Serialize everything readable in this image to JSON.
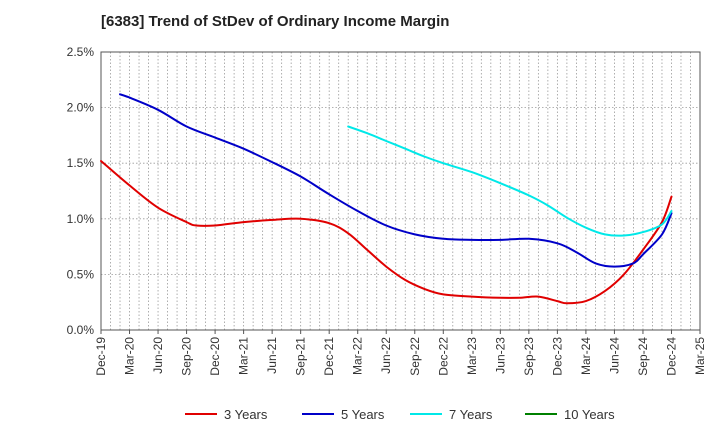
{
  "chart_data": {
    "type": "line",
    "title": "[6383]  Trend of StDev of Ordinary Income Margin",
    "xlabel": "",
    "ylabel": "",
    "x_ticks": [
      "Dec-19",
      "Mar-20",
      "Jun-20",
      "Sep-20",
      "Dec-20",
      "Mar-21",
      "Jun-21",
      "Sep-21",
      "Dec-21",
      "Mar-22",
      "Jun-22",
      "Sep-22",
      "Dec-22",
      "Mar-23",
      "Jun-23",
      "Sep-23",
      "Dec-23",
      "Mar-24",
      "Jun-24",
      "Sep-24",
      "Dec-24",
      "Mar-25"
    ],
    "y_ticks": [
      "0.0%",
      "0.5%",
      "1.0%",
      "1.5%",
      "2.0%",
      "2.5%"
    ],
    "ylim": [
      0,
      2.5
    ],
    "y_unit": "%",
    "grid": true,
    "legend_position": "bottom",
    "series": [
      {
        "name": "3 Years",
        "color": "#e00000",
        "points": [
          [
            "Dec-19",
            1.52
          ],
          [
            "Mar-20",
            1.3
          ],
          [
            "Jun-20",
            1.1
          ],
          [
            "Sep-20",
            0.97
          ],
          [
            "Oct-20",
            0.94
          ],
          [
            "Dec-20",
            0.94
          ],
          [
            "Mar-21",
            0.97
          ],
          [
            "Jun-21",
            0.99
          ],
          [
            "Sep-21",
            1.0
          ],
          [
            "Dec-21",
            0.96
          ],
          [
            "Feb-22",
            0.87
          ],
          [
            "Apr-22",
            0.72
          ],
          [
            "Jun-22",
            0.57
          ],
          [
            "Aug-22",
            0.45
          ],
          [
            "Oct-22",
            0.37
          ],
          [
            "Dec-22",
            0.32
          ],
          [
            "Mar-23",
            0.3
          ],
          [
            "Jun-23",
            0.29
          ],
          [
            "Aug-23",
            0.29
          ],
          [
            "Oct-23",
            0.3
          ],
          [
            "Dec-23",
            0.26
          ],
          [
            "Jan-24",
            0.24
          ],
          [
            "Mar-24",
            0.26
          ],
          [
            "May-24",
            0.35
          ],
          [
            "Jul-24",
            0.5
          ],
          [
            "Sep-24",
            0.72
          ],
          [
            "Nov-24",
            0.97
          ],
          [
            "Dec-24",
            1.2
          ]
        ]
      },
      {
        "name": "5 Years",
        "color": "#0000c8",
        "points": [
          [
            "Feb-20",
            2.12
          ],
          [
            "Mar-20",
            2.09
          ],
          [
            "Jun-20",
            1.98
          ],
          [
            "Sep-20",
            1.83
          ],
          [
            "Dec-20",
            1.73
          ],
          [
            "Mar-21",
            1.63
          ],
          [
            "Jun-21",
            1.51
          ],
          [
            "Sep-21",
            1.38
          ],
          [
            "Dec-21",
            1.22
          ],
          [
            "Mar-22",
            1.07
          ],
          [
            "Jun-22",
            0.94
          ],
          [
            "Sep-22",
            0.86
          ],
          [
            "Dec-22",
            0.82
          ],
          [
            "Mar-23",
            0.81
          ],
          [
            "Jun-23",
            0.81
          ],
          [
            "Sep-23",
            0.82
          ],
          [
            "Dec-23",
            0.78
          ],
          [
            "Feb-24",
            0.7
          ],
          [
            "Apr-24",
            0.6
          ],
          [
            "Jun-24",
            0.57
          ],
          [
            "Aug-24",
            0.6
          ],
          [
            "Sep-24",
            0.68
          ],
          [
            "Nov-24",
            0.86
          ],
          [
            "Dec-24",
            1.05
          ]
        ]
      },
      {
        "name": "7 Years",
        "color": "#00e8e8",
        "points": [
          [
            "Feb-22",
            1.83
          ],
          [
            "Apr-22",
            1.77
          ],
          [
            "Jun-22",
            1.7
          ],
          [
            "Aug-22",
            1.63
          ],
          [
            "Oct-22",
            1.56
          ],
          [
            "Dec-22",
            1.5
          ],
          [
            "Mar-23",
            1.42
          ],
          [
            "Jun-23",
            1.32
          ],
          [
            "Sep-23",
            1.21
          ],
          [
            "Nov-23",
            1.12
          ],
          [
            "Jan-24",
            1.01
          ],
          [
            "Mar-24",
            0.92
          ],
          [
            "May-24",
            0.86
          ],
          [
            "Jul-24",
            0.85
          ],
          [
            "Sep-24",
            0.88
          ],
          [
            "Nov-24",
            0.95
          ],
          [
            "Dec-24",
            1.07
          ]
        ]
      },
      {
        "name": "10 Years",
        "color": "#008000",
        "points": []
      }
    ]
  }
}
